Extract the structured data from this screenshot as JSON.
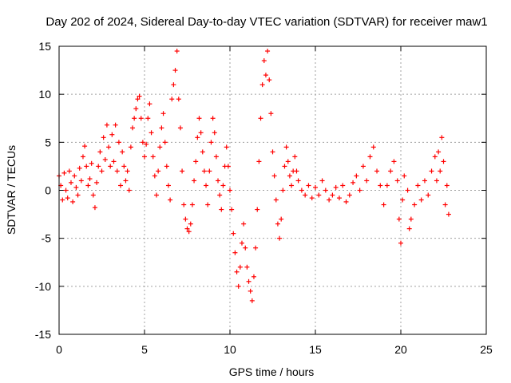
{
  "chart_data": {
    "type": "scatter",
    "title": "Day 202 of 2024, Sidereal Day-to-day VTEC variation (SDTVAR) for receiver maw1",
    "xlabel": "GPS time / hours",
    "ylabel": "SDTVAR / TECUs",
    "xlim": [
      0,
      25
    ],
    "ylim": [
      -15,
      15
    ],
    "xticks": [
      0,
      5,
      10,
      15,
      20,
      25
    ],
    "yticks": [
      -15,
      -10,
      -5,
      0,
      5,
      10,
      15
    ],
    "grid": true,
    "marker": "plus",
    "color": "#ff0000",
    "series": [
      {
        "name": "SDTVAR",
        "points": [
          [
            0.0,
            1.5
          ],
          [
            0.1,
            0.5
          ],
          [
            0.2,
            -1.0
          ],
          [
            0.3,
            1.8
          ],
          [
            0.4,
            0.0
          ],
          [
            0.5,
            -0.8
          ],
          [
            0.6,
            2.0
          ],
          [
            0.7,
            0.8
          ],
          [
            0.8,
            -1.2
          ],
          [
            0.9,
            1.5
          ],
          [
            1.0,
            0.3
          ],
          [
            1.1,
            -0.5
          ],
          [
            1.2,
            2.3
          ],
          [
            1.3,
            1.0
          ],
          [
            1.4,
            3.5
          ],
          [
            1.5,
            4.6
          ],
          [
            1.6,
            2.5
          ],
          [
            1.7,
            0.5
          ],
          [
            1.8,
            1.2
          ],
          [
            1.9,
            2.8
          ],
          [
            2.0,
            -0.5
          ],
          [
            2.1,
            -1.8
          ],
          [
            2.2,
            0.8
          ],
          [
            2.3,
            2.5
          ],
          [
            2.4,
            4.0
          ],
          [
            2.5,
            2.0
          ],
          [
            2.6,
            5.5
          ],
          [
            2.7,
            3.2
          ],
          [
            2.8,
            6.8
          ],
          [
            2.9,
            4.5
          ],
          [
            3.0,
            2.5
          ],
          [
            3.1,
            5.8
          ],
          [
            3.2,
            3.0
          ],
          [
            3.3,
            6.8
          ],
          [
            3.4,
            2.0
          ],
          [
            3.5,
            5.0
          ],
          [
            3.6,
            0.5
          ],
          [
            3.7,
            4.0
          ],
          [
            3.8,
            2.5
          ],
          [
            3.9,
            1.0
          ],
          [
            4.0,
            2.0
          ],
          [
            4.1,
            0.0
          ],
          [
            4.2,
            4.5
          ],
          [
            4.3,
            6.5
          ],
          [
            4.4,
            7.5
          ],
          [
            4.5,
            8.5
          ],
          [
            4.6,
            9.5
          ],
          [
            4.7,
            9.8
          ],
          [
            4.8,
            7.5
          ],
          [
            4.9,
            5.0
          ],
          [
            5.0,
            3.5
          ],
          [
            5.1,
            4.8
          ],
          [
            5.2,
            7.5
          ],
          [
            5.3,
            9.0
          ],
          [
            5.4,
            6.0
          ],
          [
            5.5,
            3.5
          ],
          [
            5.6,
            1.5
          ],
          [
            5.7,
            -0.5
          ],
          [
            5.8,
            2.0
          ],
          [
            5.9,
            4.5
          ],
          [
            6.0,
            6.5
          ],
          [
            6.1,
            8.0
          ],
          [
            6.2,
            5.0
          ],
          [
            6.3,
            2.5
          ],
          [
            6.4,
            0.5
          ],
          [
            6.5,
            -1.0
          ],
          [
            6.6,
            9.5
          ],
          [
            6.7,
            11.0
          ],
          [
            6.8,
            12.5
          ],
          [
            6.9,
            14.5
          ],
          [
            7.0,
            9.5
          ],
          [
            7.1,
            6.5
          ],
          [
            7.2,
            2.0
          ],
          [
            7.3,
            -1.5
          ],
          [
            7.4,
            -3.0
          ],
          [
            7.5,
            -4.0
          ],
          [
            7.6,
            -4.3
          ],
          [
            7.7,
            -3.5
          ],
          [
            7.8,
            -1.5
          ],
          [
            7.9,
            1.0
          ],
          [
            8.0,
            3.0
          ],
          [
            8.1,
            5.5
          ],
          [
            8.2,
            7.5
          ],
          [
            8.3,
            6.0
          ],
          [
            8.4,
            4.0
          ],
          [
            8.5,
            2.0
          ],
          [
            8.6,
            0.5
          ],
          [
            8.7,
            -1.5
          ],
          [
            8.8,
            2.0
          ],
          [
            8.9,
            5.0
          ],
          [
            9.0,
            7.5
          ],
          [
            9.1,
            6.0
          ],
          [
            9.2,
            3.5
          ],
          [
            9.3,
            1.0
          ],
          [
            9.4,
            -0.5
          ],
          [
            9.5,
            -2.0
          ],
          [
            9.6,
            0.5
          ],
          [
            9.7,
            2.5
          ],
          [
            9.8,
            4.5
          ],
          [
            9.9,
            2.5
          ],
          [
            10.0,
            0.0
          ],
          [
            10.1,
            -2.0
          ],
          [
            10.2,
            -4.5
          ],
          [
            10.3,
            -6.5
          ],
          [
            10.4,
            -8.5
          ],
          [
            10.5,
            -10.0
          ],
          [
            10.6,
            -8.0
          ],
          [
            10.7,
            -5.5
          ],
          [
            10.8,
            -3.5
          ],
          [
            10.9,
            -6.0
          ],
          [
            11.0,
            -8.0
          ],
          [
            11.1,
            -9.5
          ],
          [
            11.2,
            -10.5
          ],
          [
            11.3,
            -11.5
          ],
          [
            11.4,
            -9.0
          ],
          [
            11.5,
            -6.0
          ],
          [
            11.6,
            -2.0
          ],
          [
            11.7,
            3.0
          ],
          [
            11.8,
            7.5
          ],
          [
            11.9,
            11.0
          ],
          [
            12.0,
            13.5
          ],
          [
            12.1,
            12.0
          ],
          [
            12.2,
            14.5
          ],
          [
            12.3,
            11.5
          ],
          [
            12.4,
            8.0
          ],
          [
            12.5,
            4.0
          ],
          [
            12.6,
            1.5
          ],
          [
            12.7,
            -1.0
          ],
          [
            12.8,
            -3.5
          ],
          [
            12.9,
            -5.0
          ],
          [
            13.0,
            -3.0
          ],
          [
            13.1,
            0.0
          ],
          [
            13.2,
            2.5
          ],
          [
            13.3,
            4.5
          ],
          [
            13.4,
            3.0
          ],
          [
            13.5,
            1.5
          ],
          [
            13.6,
            0.5
          ],
          [
            13.7,
            2.0
          ],
          [
            13.8,
            3.5
          ],
          [
            13.9,
            2.0
          ],
          [
            14.0,
            1.0
          ],
          [
            14.2,
            0.0
          ],
          [
            14.4,
            -0.5
          ],
          [
            14.6,
            0.5
          ],
          [
            14.8,
            -0.8
          ],
          [
            15.0,
            0.3
          ],
          [
            15.2,
            -0.5
          ],
          [
            15.4,
            1.0
          ],
          [
            15.6,
            0.0
          ],
          [
            15.8,
            -1.0
          ],
          [
            16.0,
            -0.5
          ],
          [
            16.2,
            0.3
          ],
          [
            16.4,
            -0.8
          ],
          [
            16.6,
            0.5
          ],
          [
            16.8,
            -1.2
          ],
          [
            17.0,
            -0.5
          ],
          [
            17.2,
            0.8
          ],
          [
            17.4,
            1.5
          ],
          [
            17.6,
            0.0
          ],
          [
            17.8,
            2.5
          ],
          [
            18.0,
            1.0
          ],
          [
            18.2,
            3.5
          ],
          [
            18.4,
            4.5
          ],
          [
            18.6,
            2.0
          ],
          [
            18.8,
            0.5
          ],
          [
            19.0,
            -1.5
          ],
          [
            19.2,
            0.5
          ],
          [
            19.4,
            2.0
          ],
          [
            19.6,
            3.0
          ],
          [
            19.8,
            1.0
          ],
          [
            19.9,
            -3.0
          ],
          [
            20.0,
            -5.5
          ],
          [
            20.1,
            -1.0
          ],
          [
            20.2,
            1.5
          ],
          [
            20.4,
            0.0
          ],
          [
            20.5,
            -4.0
          ],
          [
            20.6,
            -3.0
          ],
          [
            20.8,
            -1.5
          ],
          [
            21.0,
            0.5
          ],
          [
            21.2,
            -1.0
          ],
          [
            21.4,
            1.0
          ],
          [
            21.6,
            -0.5
          ],
          [
            21.8,
            2.0
          ],
          [
            22.0,
            3.5
          ],
          [
            22.1,
            1.0
          ],
          [
            22.2,
            4.0
          ],
          [
            22.3,
            2.0
          ],
          [
            22.4,
            5.5
          ],
          [
            22.5,
            3.0
          ],
          [
            22.6,
            -1.5
          ],
          [
            22.7,
            0.5
          ],
          [
            22.8,
            -2.5
          ]
        ]
      }
    ]
  }
}
